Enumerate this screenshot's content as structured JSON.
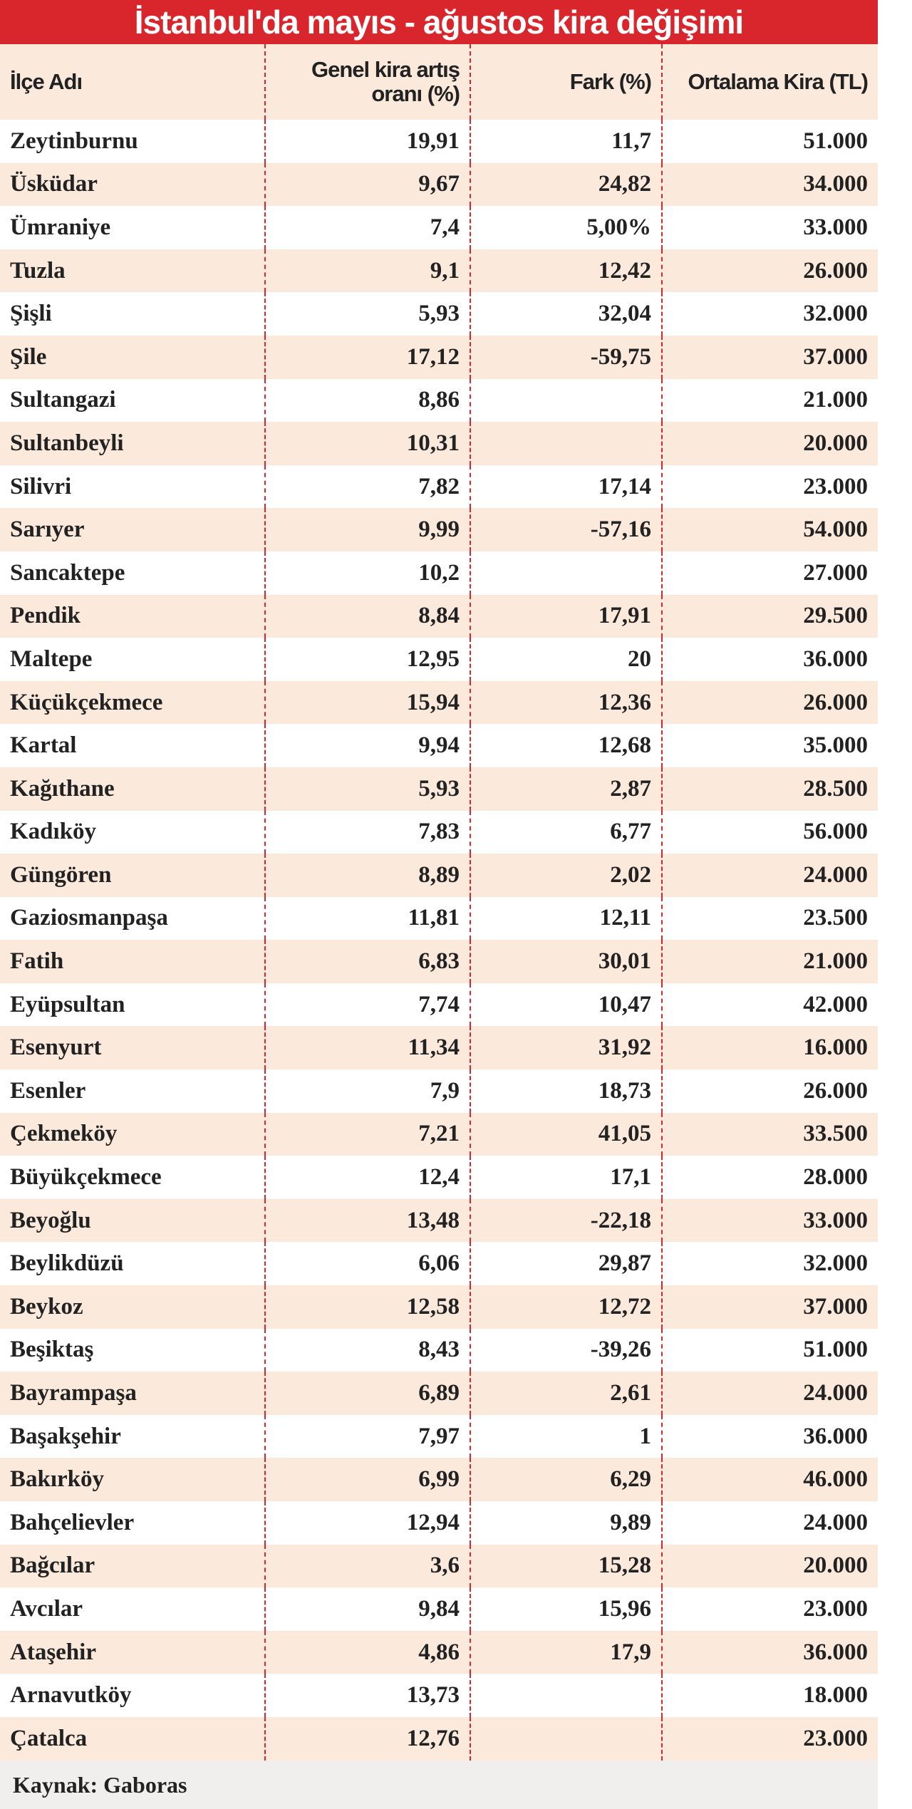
{
  "title": "İstanbul'da mayıs - ağustos kira değişimi",
  "table": {
    "headers": [
      "İlçe Adı",
      "Genel kira artış oranı (%)",
      "Fark (%)",
      "Ortalama Kira (TL)"
    ],
    "rows": [
      [
        "Zeytinburnu",
        "19,91",
        "11,7",
        "51.000"
      ],
      [
        "Üsküdar",
        "9,67",
        "24,82",
        "34.000"
      ],
      [
        "Ümraniye",
        "7,4",
        "5,00%",
        "33.000"
      ],
      [
        "Tuzla",
        "9,1",
        "12,42",
        "26.000"
      ],
      [
        "Şişli",
        "5,93",
        "32,04",
        "32.000"
      ],
      [
        "Şile",
        "17,12",
        "-59,75",
        "37.000"
      ],
      [
        "Sultangazi",
        "8,86",
        null,
        "21.000"
      ],
      [
        "Sultanbeyli",
        "10,31",
        null,
        "20.000"
      ],
      [
        "Silivri",
        "7,82",
        "17,14",
        "23.000"
      ],
      [
        "Sarıyer",
        "9,99",
        "-57,16",
        "54.000"
      ],
      [
        "Sancaktepe",
        "10,2",
        null,
        "27.000"
      ],
      [
        "Pendik",
        "8,84",
        "17,91",
        "29.500"
      ],
      [
        "Maltepe",
        "12,95",
        "20",
        "36.000"
      ],
      [
        "Küçükçekmece",
        "15,94",
        "12,36",
        "26.000"
      ],
      [
        "Kartal",
        "9,94",
        "12,68",
        "35.000"
      ],
      [
        "Kağıthane",
        "5,93",
        "2,87",
        "28.500"
      ],
      [
        "Kadıköy",
        "7,83",
        "6,77",
        "56.000"
      ],
      [
        "Güngören",
        "8,89",
        "2,02",
        "24.000"
      ],
      [
        "Gaziosmanpaşa",
        "11,81",
        "12,11",
        "23.500"
      ],
      [
        "Fatih",
        "6,83",
        "30,01",
        "21.000"
      ],
      [
        "Eyüpsultan",
        "7,74",
        "10,47",
        "42.000"
      ],
      [
        "Esenyurt",
        "11,34",
        "31,92",
        "16.000"
      ],
      [
        "Esenler",
        "7,9",
        "18,73",
        "26.000"
      ],
      [
        "Çekmeköy",
        "7,21",
        "41,05",
        "33.500"
      ],
      [
        "Büyükçekmece",
        "12,4",
        "17,1",
        "28.000"
      ],
      [
        "Beyoğlu",
        "13,48",
        "-22,18",
        "33.000"
      ],
      [
        "Beylikdüzü",
        "6,06",
        "29,87",
        "32.000"
      ],
      [
        "Beykoz",
        "12,58",
        "12,72",
        "37.000"
      ],
      [
        "Beşiktaş",
        "8,43",
        "-39,26",
        "51.000"
      ],
      [
        "Bayrampaşa",
        "6,89",
        "2,61",
        "24.000"
      ],
      [
        "Başakşehir",
        "7,97",
        "1",
        "36.000"
      ],
      [
        "Bakırköy",
        "6,99",
        "6,29",
        "46.000"
      ],
      [
        "Bahçelievler",
        "12,94",
        "9,89",
        "24.000"
      ],
      [
        "Bağcılar",
        "3,6",
        "15,28",
        "20.000"
      ],
      [
        "Avcılar",
        "9,84",
        "15,96",
        "23.000"
      ],
      [
        "Ataşehir",
        "4,86",
        "17,9",
        "36.000"
      ],
      [
        "Arnavutköy",
        "13,73",
        null,
        "18.000"
      ],
      [
        "Çatalca",
        "12,76",
        null,
        "23.000"
      ]
    ]
  },
  "source": "Kaynak: Gaboras"
}
